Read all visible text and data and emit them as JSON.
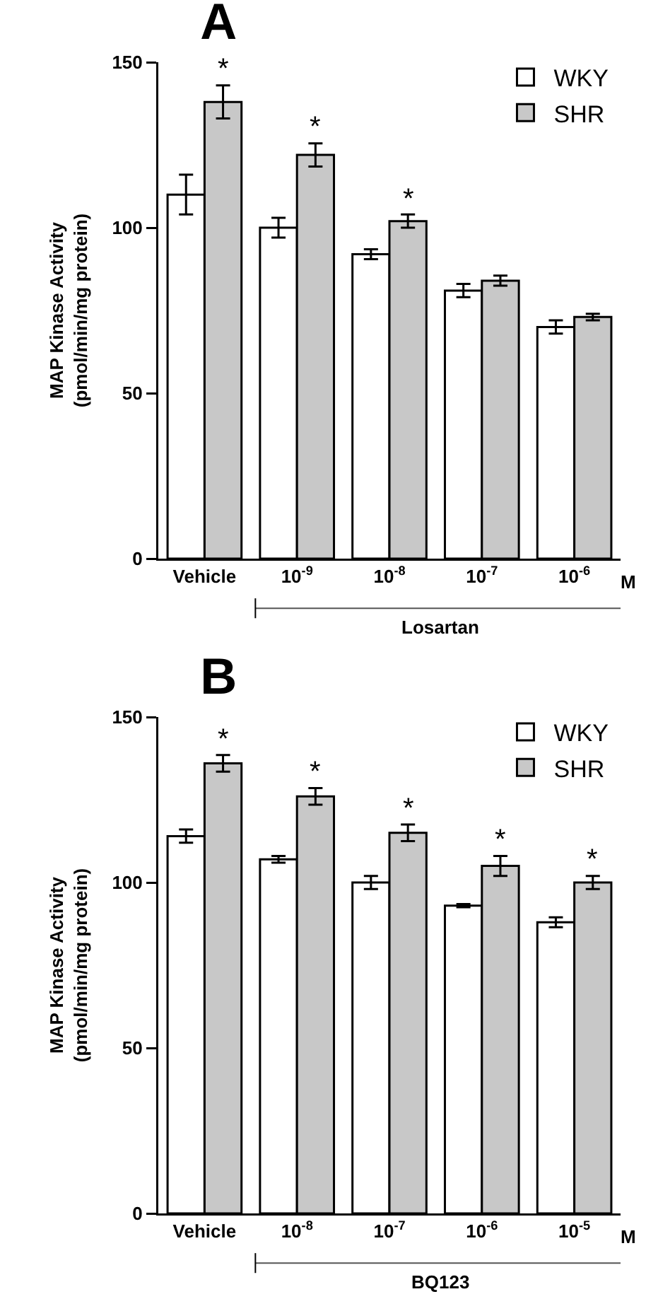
{
  "chart_data": [
    {
      "type": "bar",
      "title": "A",
      "ylabel": "MAP Kinase Activity\n(pmol/min/mg protein)",
      "categories": [
        "Vehicle",
        "10$^{-9}$",
        "10$^{-8}$",
        "10$^{-7}$",
        "10$^{-6}$"
      ],
      "series": [
        {
          "name": "WKY",
          "color": "#ffffff",
          "values": [
            110,
            100,
            92,
            81,
            70
          ],
          "errors": [
            6,
            3,
            1.5,
            2,
            2
          ]
        },
        {
          "name": "SHR",
          "color": "#c8c8c8",
          "values": [
            138,
            122,
            102,
            84,
            73
          ],
          "errors": [
            5,
            3.5,
            2,
            1.5,
            1
          ]
        }
      ],
      "ylim": [
        0,
        150
      ],
      "yticks": [
        0,
        50,
        100,
        150
      ],
      "grid": false,
      "legend": "top right",
      "annotations": [
        {
          "text": "*",
          "x": "Vehicle",
          "y": 138
        },
        {
          "text": "*",
          "x": "10$^{-9}$",
          "y": 122
        },
        {
          "text": "*",
          "x": "10$^{-8}$",
          "y": 102
        },
        "Losartan",
        "M"
      ]
    },
    {
      "type": "bar",
      "title": "B",
      "ylabel": "MAP Kinase Activity\n(pmol/min/mg protein)",
      "categories": [
        "Vehicle",
        "10$^{-8}$",
        "10$^{-7}$",
        "10$^{-6}$",
        "10$^{-5}$"
      ],
      "series": [
        {
          "name": "WKY",
          "color": "#ffffff",
          "values": [
            114,
            107,
            100,
            93,
            88
          ],
          "errors": [
            2,
            1,
            2,
            0.5,
            1.5
          ]
        },
        {
          "name": "SHR",
          "color": "#c8c8c8",
          "values": [
            136,
            126,
            115,
            105,
            100
          ],
          "errors": [
            2.5,
            2.5,
            2.5,
            3,
            2
          ]
        }
      ],
      "ylim": [
        0,
        150
      ],
      "yticks": [
        0,
        50,
        100,
        150
      ],
      "grid": false,
      "legend": "top right",
      "annotations": [
        {
          "text": "*",
          "x": "Vehicle",
          "y": 136
        },
        {
          "text": "*",
          "x": "10$^{-8}$",
          "y": 126
        },
        {
          "text": "*",
          "x": "10$^{-7}$",
          "y": 115
        },
        {
          "text": "*",
          "x": "10$^{-6}$",
          "y": 105
        },
        {
          "text": "*",
          "x": "10$^{-5}$",
          "y": 100
        },
        "BQ123",
        "M"
      ]
    }
  ]
}
